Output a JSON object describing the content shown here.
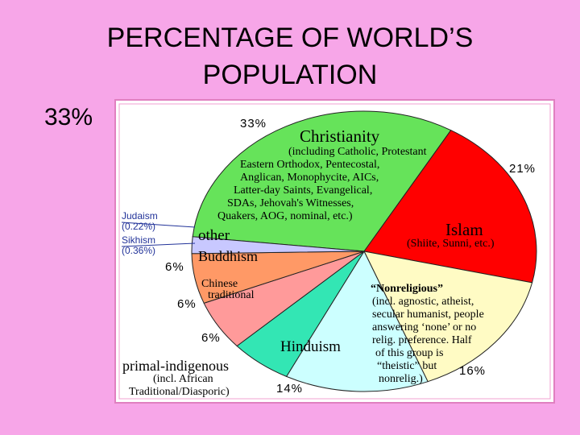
{
  "chart_data": {
    "type": "pie",
    "title": "PERCENTAGE OF WORLD’S POPULATION",
    "side_label": "33%",
    "categories": [
      "Christianity",
      "Islam",
      "“Nonreligious”",
      "Hinduism",
      "primal-indigenous",
      "Chinese traditional",
      "Buddhism",
      "other"
    ],
    "values": [
      33,
      21,
      16,
      14,
      6,
      6,
      6,
      2
    ],
    "value_labels": [
      "33%",
      "21%",
      "16%",
      "14%",
      "6%",
      "6%",
      "6%",
      null
    ],
    "colors": [
      "#66e35a",
      "#ff0000",
      "#fffbc4",
      "#ccffff",
      "#33e6b4",
      "#ff9a9a",
      "#ff9966",
      "#c8c8ff"
    ],
    "details": [
      [
        "(including Catholic, Protestant",
        "Eastern Orthodox, Pentecostal,",
        "Anglican, Monophycite, AICs,",
        "Latter-day Saints, Evangelical,",
        "SDAs, Jehovah's Witnesses,",
        "Quakers, AOG, nominal, etc.)"
      ],
      [
        "(Shiite, Sunni, etc.)"
      ],
      [
        "(incl. agnostic, atheist,",
        "secular humanist, people",
        "answering ‘none’ or no",
        "relig. preference. Half",
        "of this group is",
        "“theistic” but",
        "nonrelig.)"
      ],
      [],
      [
        "(incl. African",
        "Traditional/Diasporic)"
      ],
      [],
      [],
      []
    ],
    "annotations": [
      {
        "name": "Judaism",
        "value": 0.22,
        "value_label": "(0.22%)"
      },
      {
        "name": "Sikhism",
        "value": 0.36,
        "value_label": "(0.36%)"
      }
    ]
  }
}
